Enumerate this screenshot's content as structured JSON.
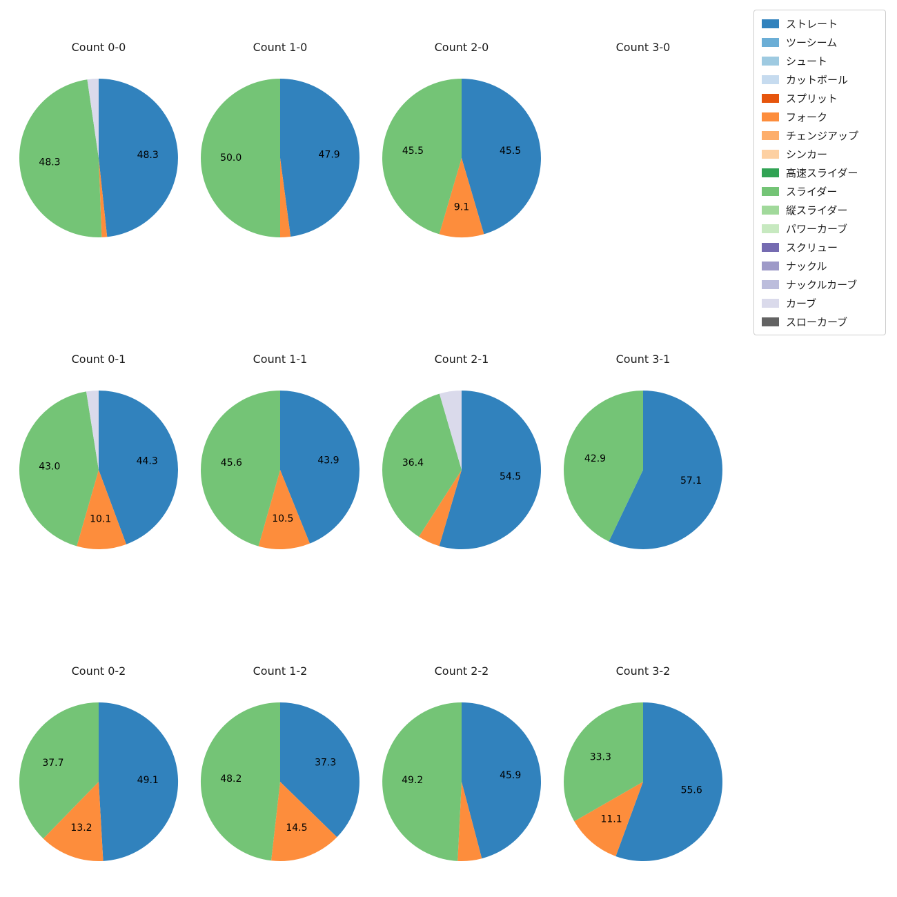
{
  "figure": {
    "background": "#ffffff",
    "text_color": "#1a1a1a"
  },
  "legend": {
    "items": [
      {
        "label": "ストレート",
        "color": "#3182bd"
      },
      {
        "label": "ツーシーム",
        "color": "#6baed6"
      },
      {
        "label": "シュート",
        "color": "#9ecae1"
      },
      {
        "label": "カットボール",
        "color": "#c6dbef"
      },
      {
        "label": "スプリット",
        "color": "#e6550d"
      },
      {
        "label": "フォーク",
        "color": "#fd8d3c"
      },
      {
        "label": "チェンジアップ",
        "color": "#fdae6b"
      },
      {
        "label": "シンカー",
        "color": "#fdd0a2"
      },
      {
        "label": "高速スライダー",
        "color": "#31a354"
      },
      {
        "label": "スライダー",
        "color": "#74c476"
      },
      {
        "label": "縦スライダー",
        "color": "#a1d99b"
      },
      {
        "label": "パワーカーブ",
        "color": "#c7e9c0"
      },
      {
        "label": "スクリュー",
        "color": "#756bb1"
      },
      {
        "label": "ナックル",
        "color": "#9e9ac8"
      },
      {
        "label": "ナックルカーブ",
        "color": "#bcbddc"
      },
      {
        "label": "カーブ",
        "color": "#dadaeb"
      },
      {
        "label": "スローカーブ",
        "color": "#636363"
      }
    ]
  },
  "chart_data": [
    {
      "type": "pie",
      "title": "Count 0-0",
      "unit": "percent",
      "start_angle_deg": 0,
      "direction": "clockwise",
      "slices": [
        {
          "name": "ストレート",
          "value": 48.3,
          "label": "48.3"
        },
        {
          "name": "フォーク",
          "value": 1.1,
          "label": ""
        },
        {
          "name": "スライダー",
          "value": 48.3,
          "label": "48.3"
        },
        {
          "name": "カーブ",
          "value": 2.3,
          "label": ""
        }
      ]
    },
    {
      "type": "pie",
      "title": "Count 1-0",
      "unit": "percent",
      "start_angle_deg": 0,
      "direction": "clockwise",
      "slices": [
        {
          "name": "ストレート",
          "value": 47.9,
          "label": "47.9"
        },
        {
          "name": "フォーク",
          "value": 2.1,
          "label": ""
        },
        {
          "name": "スライダー",
          "value": 50.0,
          "label": "50.0"
        }
      ]
    },
    {
      "type": "pie",
      "title": "Count 2-0",
      "unit": "percent",
      "start_angle_deg": 0,
      "direction": "clockwise",
      "slices": [
        {
          "name": "ストレート",
          "value": 45.5,
          "label": "45.5"
        },
        {
          "name": "フォーク",
          "value": 9.1,
          "label": "9.1"
        },
        {
          "name": "スライダー",
          "value": 45.5,
          "label": "45.5"
        }
      ]
    },
    {
      "type": "pie",
      "title": "Count 3-0",
      "unit": "percent",
      "start_angle_deg": 0,
      "direction": "clockwise",
      "slices": []
    },
    {
      "type": "pie",
      "title": "Count 0-1",
      "unit": "percent",
      "start_angle_deg": 0,
      "direction": "clockwise",
      "slices": [
        {
          "name": "ストレート",
          "value": 44.3,
          "label": "44.3"
        },
        {
          "name": "フォーク",
          "value": 10.1,
          "label": "10.1"
        },
        {
          "name": "スライダー",
          "value": 43.0,
          "label": "43.0"
        },
        {
          "name": "カーブ",
          "value": 2.5,
          "label": ""
        }
      ]
    },
    {
      "type": "pie",
      "title": "Count 1-1",
      "unit": "percent",
      "start_angle_deg": 0,
      "direction": "clockwise",
      "slices": [
        {
          "name": "ストレート",
          "value": 43.9,
          "label": "43.9"
        },
        {
          "name": "フォーク",
          "value": 10.5,
          "label": "10.5"
        },
        {
          "name": "スライダー",
          "value": 45.6,
          "label": "45.6"
        }
      ]
    },
    {
      "type": "pie",
      "title": "Count 2-1",
      "unit": "percent",
      "start_angle_deg": 0,
      "direction": "clockwise",
      "slices": [
        {
          "name": "ストレート",
          "value": 54.5,
          "label": "54.5"
        },
        {
          "name": "フォーク",
          "value": 4.5,
          "label": ""
        },
        {
          "name": "スライダー",
          "value": 36.4,
          "label": "36.4"
        },
        {
          "name": "カーブ",
          "value": 4.5,
          "label": ""
        }
      ]
    },
    {
      "type": "pie",
      "title": "Count 3-1",
      "unit": "percent",
      "start_angle_deg": 0,
      "direction": "clockwise",
      "slices": [
        {
          "name": "ストレート",
          "value": 57.1,
          "label": "57.1"
        },
        {
          "name": "スライダー",
          "value": 42.9,
          "label": "42.9"
        }
      ]
    },
    {
      "type": "pie",
      "title": "Count 0-2",
      "unit": "percent",
      "start_angle_deg": 0,
      "direction": "clockwise",
      "slices": [
        {
          "name": "ストレート",
          "value": 49.1,
          "label": "49.1"
        },
        {
          "name": "フォーク",
          "value": 13.2,
          "label": "13.2"
        },
        {
          "name": "スライダー",
          "value": 37.7,
          "label": "37.7"
        }
      ]
    },
    {
      "type": "pie",
      "title": "Count 1-2",
      "unit": "percent",
      "start_angle_deg": 0,
      "direction": "clockwise",
      "slices": [
        {
          "name": "ストレート",
          "value": 37.3,
          "label": "37.3"
        },
        {
          "name": "フォーク",
          "value": 14.5,
          "label": "14.5"
        },
        {
          "name": "スライダー",
          "value": 48.2,
          "label": "48.2"
        }
      ]
    },
    {
      "type": "pie",
      "title": "Count 2-2",
      "unit": "percent",
      "start_angle_deg": 0,
      "direction": "clockwise",
      "slices": [
        {
          "name": "ストレート",
          "value": 45.9,
          "label": "45.9"
        },
        {
          "name": "フォーク",
          "value": 4.9,
          "label": ""
        },
        {
          "name": "スライダー",
          "value": 49.2,
          "label": "49.2"
        }
      ]
    },
    {
      "type": "pie",
      "title": "Count 3-2",
      "unit": "percent",
      "start_angle_deg": 0,
      "direction": "clockwise",
      "slices": [
        {
          "name": "ストレート",
          "value": 55.6,
          "label": "55.6"
        },
        {
          "name": "フォーク",
          "value": 11.1,
          "label": "11.1"
        },
        {
          "name": "スライダー",
          "value": 33.3,
          "label": "33.3"
        }
      ]
    }
  ]
}
